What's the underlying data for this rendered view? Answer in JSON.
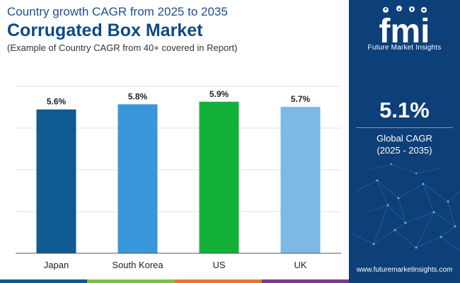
{
  "header": {
    "supertitle": "Country growth CAGR from 2025 to 2035",
    "title": "Corrugated Box Market",
    "subtitle": "(Example of Country CAGR from 40+ covered in Report)"
  },
  "chart_data": {
    "type": "bar",
    "categories": [
      "Japan",
      "South Korea",
      "US",
      "UK"
    ],
    "values": [
      5.6,
      5.8,
      5.9,
      5.7
    ],
    "value_labels": [
      "5.6%",
      "5.8%",
      "5.9%",
      "5.7%"
    ],
    "bar_colors": [
      "#0e5a91",
      "#3a97dc",
      "#14b139",
      "#7db9e4"
    ],
    "title": "",
    "xlabel": "",
    "ylabel": "",
    "ylim": [
      0,
      6.5
    ],
    "grid": true,
    "legend": "none"
  },
  "sidebar": {
    "logo_letters": "fmi",
    "logo_name": "Future Market Insights",
    "kpi_value": "5.1%",
    "kpi_label": "Global CAGR",
    "kpi_period": "(2025 - 2035)",
    "website": "www.futuremarketinsights.com"
  },
  "strip_colors": [
    "#0e5a91",
    "#7cc242",
    "#e8772e",
    "#7a3b8f"
  ],
  "colors": {
    "sidebar_bg": "#0d3f78",
    "title": "#0d4a86"
  }
}
